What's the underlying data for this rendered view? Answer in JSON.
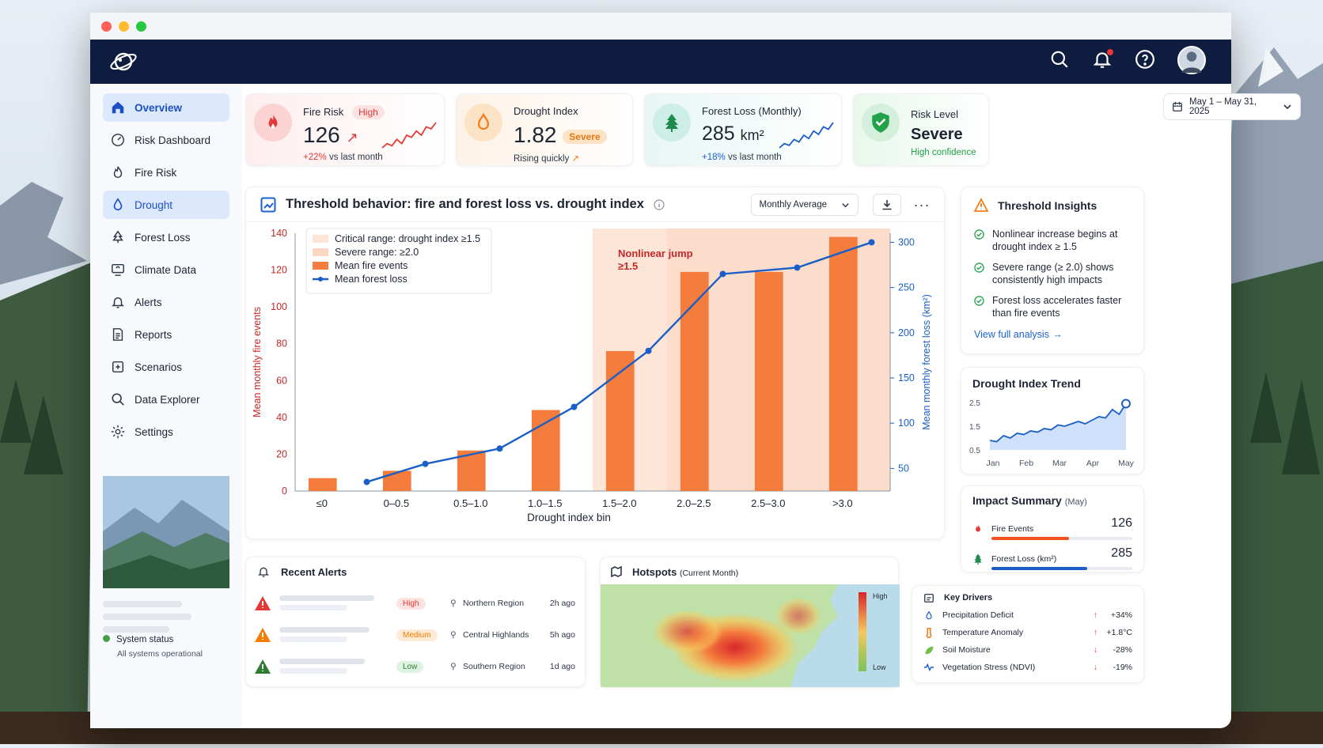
{
  "window": {
    "traffic": [
      "#ff5f57",
      "#febc2e",
      "#28c840"
    ]
  },
  "topnav": {
    "icons": [
      "planet-logo-icon",
      "search-icon",
      "bell-icon",
      "help-icon",
      "user-avatar"
    ]
  },
  "sidebar": {
    "items": [
      {
        "label": "Overview",
        "icon": "home-icon"
      },
      {
        "label": "Risk Dashboard",
        "icon": "risk-gauge-icon"
      },
      {
        "label": "Fire Risk",
        "icon": "flame-icon"
      },
      {
        "label": "Drought",
        "icon": "drop-icon"
      },
      {
        "label": "Forest Loss",
        "icon": "tree-icon"
      },
      {
        "label": "Climate Data",
        "icon": "climate-icon"
      },
      {
        "label": "Alerts",
        "icon": "bell-icon"
      },
      {
        "label": "Reports",
        "icon": "report-icon"
      },
      {
        "label": "Scenarios",
        "icon": "scenario-icon"
      },
      {
        "label": "Data Explorer",
        "icon": "search-icon"
      },
      {
        "label": "Settings",
        "icon": "gear-icon"
      }
    ],
    "status_label": "System status",
    "status_sub": "All systems operational"
  },
  "kpis": {
    "fire": {
      "label": "Fire Risk",
      "badge": "High",
      "value": "126",
      "delta": "+22%",
      "delta_text": "vs last month",
      "trend": [
        2,
        3,
        2.5,
        4,
        3,
        5,
        4.5,
        6,
        5,
        7,
        6.5,
        8
      ]
    },
    "drought": {
      "label": "Drought Index",
      "value": "1.82",
      "badge": "Severe",
      "sub": "Rising quickly"
    },
    "forest": {
      "label": "Forest Loss (Monthly)",
      "value": "285",
      "unit": "km²",
      "delta": "+18%",
      "delta_text": "vs last month",
      "trend": [
        2,
        3,
        2.6,
        4,
        3.4,
        5,
        4.2,
        6,
        5.2,
        7,
        6.4,
        8
      ]
    },
    "risk": {
      "label": "Risk Level",
      "value": "Severe",
      "sub": "High confidence"
    }
  },
  "date_range": "May 1 – May 31, 2025",
  "main_chart": {
    "title": "Threshold behavior: fire and forest loss vs. drought index",
    "aggregation": "Monthly Average",
    "annotation_line1": "Nonlinear jump",
    "annotation_line2": "≥1.5",
    "legend": [
      "Critical range: drought index ≥1.5",
      "Severe range: ≥2.0",
      "Mean fire events",
      "Mean forest loss"
    ]
  },
  "chart_data": {
    "type": "bar",
    "categories": [
      "≤0",
      "0–0.5",
      "0.5–1.0",
      "1.0–1.5",
      "1.5–2.0",
      "2.0–2.5",
      "2.5–3.0",
      ">3.0"
    ],
    "series": [
      {
        "name": "Mean fire events",
        "type": "bar",
        "axis": "left",
        "color": "#f47c3c",
        "values": [
          7,
          11,
          22,
          44,
          76,
          119,
          119,
          138
        ]
      },
      {
        "name": "Mean forest loss",
        "type": "line",
        "axis": "right",
        "color": "#1a5fc8",
        "values": [
          35,
          55,
          72,
          118,
          180,
          265,
          272,
          300
        ]
      }
    ],
    "xlabel": "Drought index bin",
    "ylabel": "Mean monthly fire events",
    "y2label": "Mean monthly forest loss (km²)",
    "ylim": [
      0,
      140
    ],
    "y2lim": [
      25,
      310
    ],
    "yticks": [
      0,
      20,
      40,
      60,
      80,
      100,
      120,
      140
    ],
    "y2ticks": [
      50,
      100,
      150,
      200,
      250,
      300
    ],
    "critical_from_category": "1.5–2.0",
    "severe_from_category": "2.0–2.5",
    "legend_position": "top-left",
    "grid": false
  },
  "insights": {
    "title": "Threshold Insights",
    "items": [
      "Nonlinear increase begins at drought index ≥ 1.5",
      "Severe range (≥ 2.0) shows consistently high impacts",
      "Forest loss accelerates faster than fire events"
    ],
    "link": "View full analysis"
  },
  "trend": {
    "title": "Drought Index Trend",
    "yticks": [
      "2.5",
      "1.5",
      "0.5"
    ],
    "months": [
      "Jan",
      "Feb",
      "Mar",
      "Apr",
      "May"
    ],
    "values": [
      0.9,
      0.85,
      1.1,
      1.0,
      1.2,
      1.15,
      1.3,
      1.25,
      1.4,
      1.35,
      1.55,
      1.5,
      1.6,
      1.7,
      1.6,
      1.75,
      1.9,
      1.85,
      2.2,
      2.0,
      2.45
    ]
  },
  "impact": {
    "title": "Impact Summary",
    "period": "(May)",
    "items": [
      {
        "label": "Fire Events",
        "value": "126",
        "level": 0.55,
        "color": "#f4511e"
      },
      {
        "label": "Forest Loss (km²)",
        "value": "285",
        "level": 0.68,
        "color": "#1a5fc8"
      }
    ]
  },
  "alerts": {
    "title": "Recent Alerts",
    "rows": [
      {
        "level": "High",
        "region": "Northern Region",
        "time": "2h ago",
        "color": "#e53935",
        "bg": "#fde2e2"
      },
      {
        "level": "Medium",
        "region": "Central Highlands",
        "time": "5h ago",
        "color": "#f57c00",
        "bg": "#fdebd6"
      },
      {
        "level": "Low",
        "region": "Southern Region",
        "time": "1d ago",
        "color": "#2e7d32",
        "bg": "#dff3e2"
      }
    ]
  },
  "hotspots": {
    "title": "Hotspots",
    "period": "(Current Month)",
    "scale_high": "High",
    "scale_low": "Low"
  },
  "drivers": {
    "title": "Key Drivers",
    "items": [
      {
        "label": "Precipitation Deficit",
        "value": "+34%",
        "icon": "drop-icon"
      },
      {
        "label": "Temperature Anomaly",
        "value": "+1.8°C",
        "icon": "thermometer-icon"
      },
      {
        "label": "Soil Moisture",
        "value": "-28%",
        "icon": "leaf-icon"
      },
      {
        "label": "Vegetation Stress (NDVI)",
        "value": "-19%",
        "icon": "pulse-icon"
      }
    ]
  }
}
